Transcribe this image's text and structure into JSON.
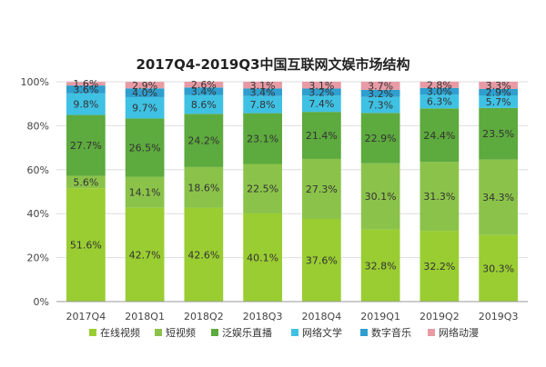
{
  "chart_data": {
    "type": "bar",
    "stacked": true,
    "title": "2017Q4-2019Q3中国互联网文娱市场结构",
    "categories": [
      "2017Q4",
      "2018Q1",
      "2018Q2",
      "2018Q3",
      "2018Q4",
      "2019Q1",
      "2019Q2",
      "2019Q3"
    ],
    "ylim": [
      0,
      100
    ],
    "yticks": [
      "0%",
      "20%",
      "40%",
      "60%",
      "80%",
      "100%"
    ],
    "grid": true,
    "legend_position": "bottom",
    "series": [
      {
        "name": "在线视频",
        "color": "#9ACD32",
        "values": [
          51.6,
          42.7,
          42.6,
          40.1,
          37.6,
          32.8,
          32.2,
          30.3
        ],
        "labels": [
          "51.6%",
          "42.7%",
          "42.6%",
          "40.1%",
          "37.6%",
          "32.8%",
          "32.2%",
          "30.3%"
        ]
      },
      {
        "name": "短视频",
        "color": "#8BC34A",
        "values": [
          5.6,
          14.1,
          18.6,
          22.5,
          27.3,
          30.1,
          31.3,
          34.3
        ],
        "labels": [
          "5.6%",
          "14.1%",
          "18.6%",
          "22.5%",
          "27.3%",
          "30.1%",
          "31.3%",
          "34.3%"
        ]
      },
      {
        "name": "泛娱乐直播",
        "color": "#5DAA3E",
        "values": [
          27.7,
          26.5,
          24.2,
          23.1,
          21.4,
          22.9,
          24.4,
          23.5
        ],
        "labels": [
          "27.7%",
          "26.5%",
          "24.2%",
          "23.1%",
          "21.4%",
          "22.9%",
          "24.4%",
          "23.5%"
        ]
      },
      {
        "name": "网络文学",
        "color": "#3FC1E3",
        "values": [
          9.8,
          9.7,
          8.6,
          7.8,
          7.4,
          7.3,
          6.3,
          5.7
        ],
        "labels": [
          "9.8%",
          "9.7%",
          "8.6%",
          "7.8%",
          "7.4%",
          "7.3%",
          "6.3%",
          "5.7%"
        ]
      },
      {
        "name": "数字音乐",
        "color": "#2E9FCF",
        "values": [
          3.6,
          4.0,
          3.4,
          3.4,
          3.2,
          3.2,
          3.0,
          2.9
        ],
        "labels": [
          "3.6%",
          "4.0%",
          "3.4%",
          "3.4%",
          "3.2%",
          "3.2%",
          "3.0%",
          "2.9%"
        ]
      },
      {
        "name": "网络动漫",
        "color": "#E89BA5",
        "values": [
          1.6,
          2.9,
          2.6,
          3.1,
          3.1,
          3.7,
          2.8,
          3.3
        ],
        "labels": [
          "1.6%",
          "2.9%",
          "2.6%",
          "3.1%",
          "3.1%",
          "3.7%",
          "2.8%",
          "3.3%"
        ]
      }
    ]
  }
}
